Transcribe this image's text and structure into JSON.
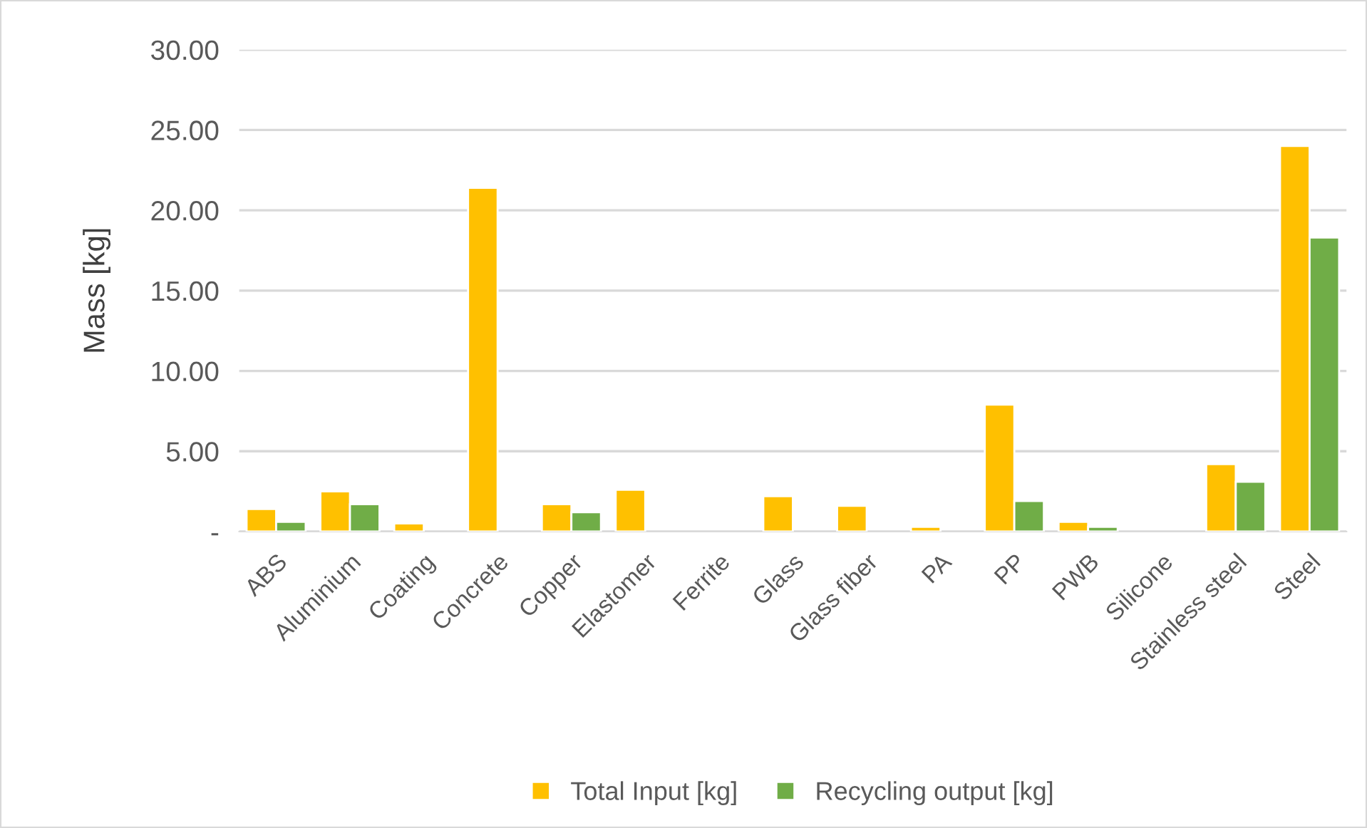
{
  "chart_data": {
    "type": "bar",
    "ylabel": "Mass [kg]",
    "categories": [
      "ABS",
      "Aluminium",
      "Coating",
      "Concrete",
      "Copper",
      "Elastomer",
      "Ferrite",
      "Glass",
      "Glass fiber",
      "PA",
      "PP",
      "PWB",
      "Silicone",
      "Stainless steel",
      "Steel"
    ],
    "series": [
      {
        "name": "Total Input [kg]",
        "color": "#ffc000",
        "values": [
          1.4,
          2.5,
          0.5,
          21.4,
          1.7,
          2.6,
          null,
          2.2,
          1.6,
          0.3,
          7.9,
          0.6,
          null,
          4.2,
          24.0
        ]
      },
      {
        "name": "Recycling output [kg]",
        "color": "#70ad47",
        "values": [
          0.6,
          1.7,
          null,
          null,
          1.2,
          null,
          null,
          null,
          null,
          null,
          1.9,
          0.3,
          null,
          3.1,
          18.3
        ]
      }
    ],
    "ylim": [
      0,
      30
    ],
    "yticks": [
      {
        "value": 0,
        "label": "-"
      },
      {
        "value": 5,
        "label": "5.00"
      },
      {
        "value": 10,
        "label": "10.00"
      },
      {
        "value": 15,
        "label": "15.00"
      },
      {
        "value": 20,
        "label": "20.00"
      },
      {
        "value": 25,
        "label": "25.00"
      },
      {
        "value": 30,
        "label": "30.00"
      }
    ],
    "grid": "y",
    "legend": "bottom"
  }
}
